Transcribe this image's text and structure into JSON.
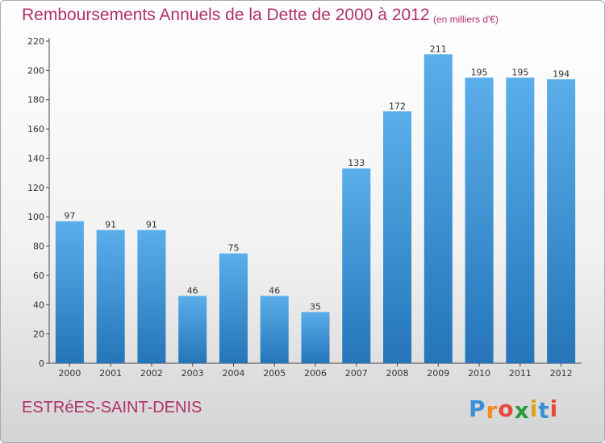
{
  "header": {
    "title": "Remboursements Annuels de la Dette de 2000 à 2012",
    "unit": "(en milliers d'€)"
  },
  "footer": {
    "commune": "ESTRéES-SAINT-DENIS",
    "logo": {
      "letters": [
        "P",
        "r",
        "o",
        "x",
        "i",
        "t",
        "i"
      ],
      "colors": [
        "#3a8fd6",
        "#f08a1c",
        "#e8483b",
        "#2a9a3c",
        "#d8a41a",
        "#3a8fd6",
        "#e8483b"
      ]
    }
  },
  "colors": {
    "bar_top": "#5aaeea",
    "bar_bottom": "#2575b8",
    "text": "#333333",
    "accent": "#b0306a"
  },
  "chart_data": {
    "type": "bar",
    "categories": [
      "2000",
      "2001",
      "2002",
      "2003",
      "2004",
      "2005",
      "2006",
      "2007",
      "2008",
      "2009",
      "2010",
      "2011",
      "2012"
    ],
    "values": [
      97,
      91,
      91,
      46,
      75,
      46,
      35,
      133,
      172,
      211,
      195,
      195,
      194
    ],
    "title": "Remboursements Annuels de la Dette de 2000 à 2012",
    "xlabel": "",
    "ylabel": "",
    "ylim": [
      0,
      220
    ],
    "yticks": [
      0,
      20,
      40,
      60,
      80,
      100,
      120,
      140,
      160,
      180,
      200,
      220
    ],
    "grid": false,
    "legend": "none"
  }
}
